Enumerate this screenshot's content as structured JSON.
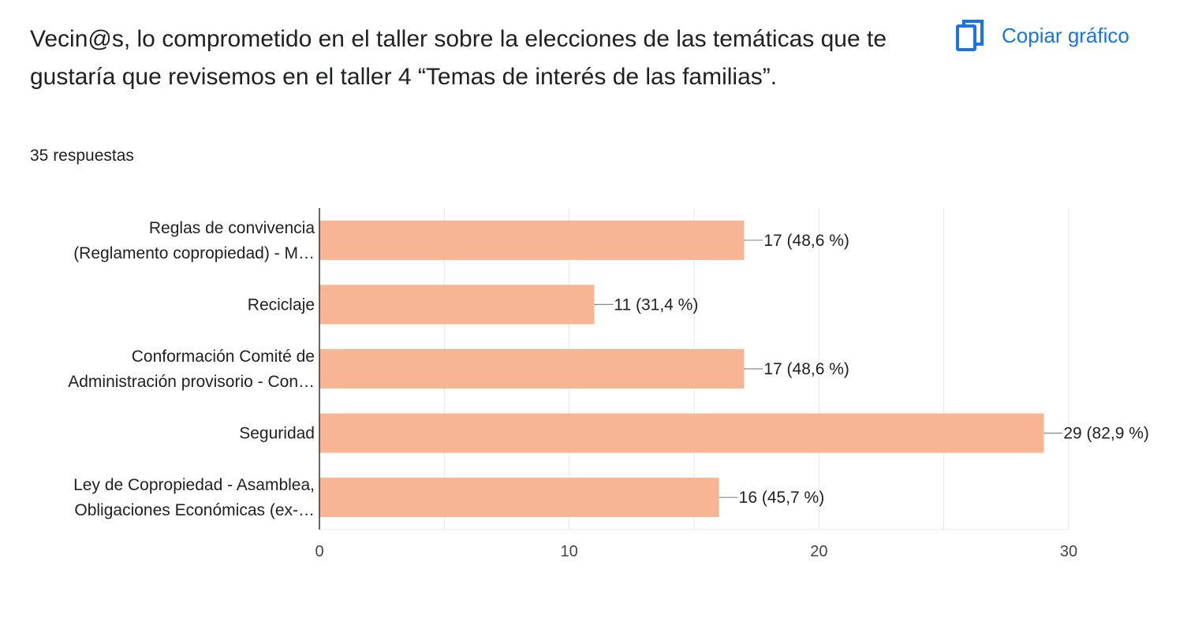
{
  "question": {
    "title": "Vecin@s, lo comprometido en el taller sobre la elecciones de las temáticas que te gustaría que revisemos en el taller 4 “Temas de interés de las familias”.",
    "responses_label": "35 respuestas"
  },
  "actions": {
    "copy_chart_label": "Copiar gráfico",
    "copy_chart_icon": "copy-icon"
  },
  "colors": {
    "bar": "#f8b594",
    "accent": "#1a73e8",
    "grid": "#e6e6e6",
    "axis": "#333333"
  },
  "chart_data": {
    "type": "bar",
    "orientation": "horizontal",
    "categories": [
      [
        "Reglas de convivencia",
        "(Reglamento copropiedad) - M…"
      ],
      [
        "Reciclaje"
      ],
      [
        "Conformación Comité de",
        "Administración provisorio - Con…"
      ],
      [
        "Seguridad"
      ],
      [
        "Ley de Copropiedad - Asamblea,",
        "Obligaciones Económicas (ex-…"
      ]
    ],
    "values": [
      17,
      11,
      17,
      29,
      16
    ],
    "data_labels": [
      "17 (48,6 %)",
      "11 (31,4 %)",
      "17 (48,6 %)",
      "29 (82,9 %)",
      "16 (45,7 %)"
    ],
    "xlim": [
      0,
      30
    ],
    "xticks": [
      0,
      10,
      20,
      30
    ],
    "grid": true,
    "legend": "none",
    "title": "",
    "xlabel": "",
    "ylabel": ""
  }
}
